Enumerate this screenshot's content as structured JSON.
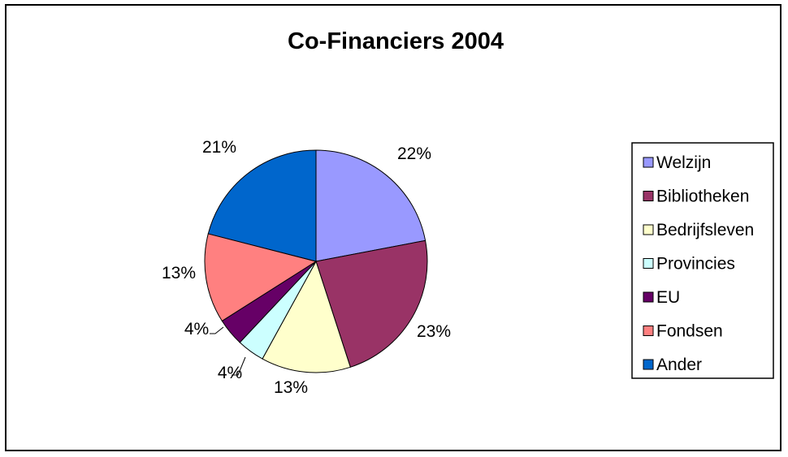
{
  "chart_data": {
    "type": "pie",
    "title": "Co-Financiers 2004",
    "start_angle_deg": 0,
    "direction": "clockwise",
    "legend_position": "right",
    "slices": [
      {
        "name": "Welzijn",
        "value": 22,
        "label": "22%",
        "color": "#9999FF"
      },
      {
        "name": "Bibliotheken",
        "value": 23,
        "label": "23%",
        "color": "#993366"
      },
      {
        "name": "Bedrijfsleven",
        "value": 13,
        "label": "13%",
        "color": "#FFFFCC"
      },
      {
        "name": "Provincies",
        "value": 4,
        "label": "4%",
        "color": "#CCFFFF"
      },
      {
        "name": "EU",
        "value": 4,
        "label": "4%",
        "color": "#660066"
      },
      {
        "name": "Fondsen",
        "value": 13,
        "label": "13%",
        "color": "#FF8080"
      },
      {
        "name": "Ander",
        "value": 21,
        "label": "21%",
        "color": "#0066CC"
      }
    ]
  }
}
